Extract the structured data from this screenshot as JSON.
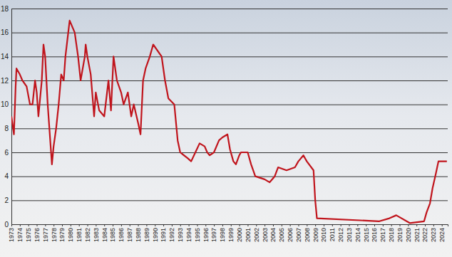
{
  "chart_data": {
    "type": "line",
    "color": "#c0141c",
    "grid": true,
    "x": [
      1973.0,
      1973.3,
      1973.5,
      1973.6,
      1974.0,
      1974.3,
      1974.8,
      1975.2,
      1975.5,
      1975.8,
      1976.0,
      1976.2,
      1976.6,
      1976.8,
      1977.0,
      1977.3,
      1977.6,
      1977.8,
      1978.0,
      1978.3,
      1978.6,
      1978.9,
      1979.2,
      1979.4,
      1979.9,
      1980.5,
      1980.9,
      1981.2,
      1981.7,
      1981.8,
      1982.0,
      1982.4,
      1982.8,
      1983.0,
      1983.4,
      1984.0,
      1984.5,
      1984.8,
      1985.1,
      1985.5,
      1986.0,
      1986.3,
      1986.8,
      1987.2,
      1987.5,
      1988.0,
      1988.3,
      1988.6,
      1988.9,
      1989.4,
      1989.8,
      1990.8,
      1991.2,
      1991.6,
      1992.3,
      1992.7,
      1993.0,
      1993.9,
      1994.3,
      1994.8,
      1995.3,
      1995.9,
      1996.2,
      1996.5,
      1997.0,
      1997.6,
      1998.0,
      1998.6,
      1998.9,
      1999.3,
      1999.6,
      2000.0,
      2000.2,
      2001.0,
      2001.4,
      2001.9,
      2003.0,
      2003.6,
      2004.2,
      2004.6,
      2005.6,
      2006.6,
      2007.0,
      2007.6,
      2008.0,
      2008.8,
      2009.0,
      2009.2,
      2016.6,
      2017.8,
      2018.6,
      2020.2,
      2021.9,
      2022.2,
      2022.6,
      2022.9,
      2023.3,
      2023.6,
      2024.6
    ],
    "values": [
      9,
      7.5,
      11.5,
      13,
      12.5,
      12,
      11.5,
      10,
      10,
      12,
      11,
      9,
      12,
      15,
      14,
      10,
      7,
      5,
      6.5,
      8,
      10,
      12.5,
      12,
      14,
      17,
      16,
      14,
      12,
      14,
      15,
      14,
      12.5,
      9,
      11,
      9.5,
      9,
      12,
      9.5,
      14,
      12,
      11,
      10,
      11,
      9,
      10,
      8.5,
      7.5,
      12,
      13,
      14,
      15,
      14,
      12,
      10.5,
      10,
      7,
      6,
      5.5,
      5.25,
      6,
      6.75,
      6.5,
      6,
      5.75,
      6,
      7,
      7.25,
      7.5,
      6.25,
      5.25,
      5,
      5.75,
      6,
      6,
      5,
      4,
      3.75,
      3.5,
      4,
      4.75,
      4.5,
      4.75,
      5.25,
      5.75,
      5.25,
      4.5,
      2,
      0.5,
      0.25,
      0.5,
      0.75,
      0.1,
      0.25,
      1,
      1.75,
      3,
      4.25,
      5.25,
      5.25
    ],
    "xlim": [
      1973,
      2024.7
    ],
    "ylim": [
      0,
      18
    ],
    "xticks": [
      1973,
      1974,
      1975,
      1976,
      1977,
      1978,
      1979,
      1980,
      1981,
      1982,
      1983,
      1984,
      1985,
      1986,
      1987,
      1988,
      1989,
      1990,
      1991,
      1992,
      1993,
      1994,
      1995,
      1996,
      1997,
      1998,
      1999,
      2000,
      2001,
      2002,
      2003,
      2004,
      2005,
      2006,
      2007,
      2008,
      2009,
      2010,
      2011,
      2012,
      2013,
      2014,
      2015,
      2016,
      2017,
      2018,
      2019,
      2020,
      2021,
      2022,
      2023,
      2024
    ],
    "yticks": [
      0,
      2,
      4,
      6,
      8,
      10,
      12,
      14,
      16,
      18
    ]
  }
}
